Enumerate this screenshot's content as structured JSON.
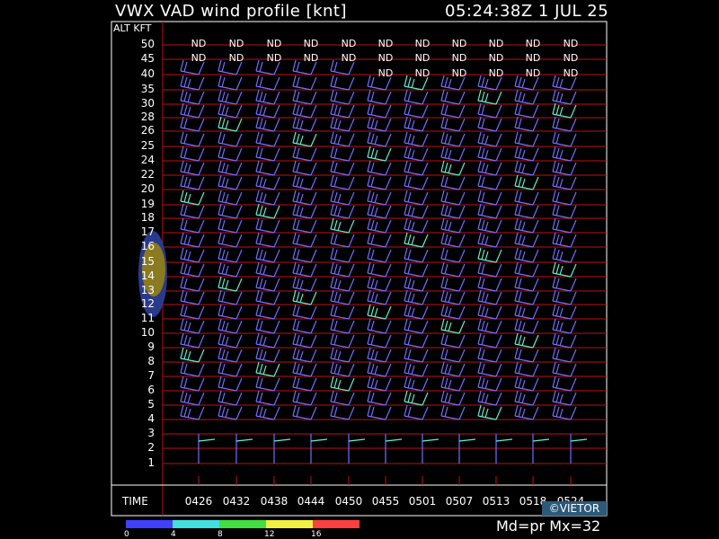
{
  "header": {
    "title": "VWX VAD wind profile [knt]",
    "timestamp": "05:24:38Z   1 JUL 25"
  },
  "axis": {
    "alt_label": "ALT KFT",
    "time_label": "TIME",
    "altitudes": [
      "50",
      "45",
      "40",
      "35",
      "30",
      "28",
      "26",
      "25",
      "24",
      "22",
      "20",
      "19",
      "18",
      "17",
      "16",
      "15",
      "14",
      "13",
      "12",
      "11",
      "10",
      "9",
      "8",
      "7",
      "6",
      "5",
      "4",
      "3",
      "2",
      "1"
    ],
    "times": [
      "0426",
      "0432",
      "0438",
      "0444",
      "0450",
      "0455",
      "0501",
      "0507",
      "0513",
      "0518",
      "0524"
    ]
  },
  "nd_label": "ND",
  "nd_rows": {
    "50": [
      0,
      1,
      2,
      3,
      4,
      5,
      6,
      7,
      8,
      9,
      10
    ],
    "45": [
      0,
      1,
      2,
      3,
      4,
      5,
      6,
      7,
      8,
      9,
      10
    ],
    "40": [
      5,
      6,
      7,
      8,
      9,
      10
    ]
  },
  "legend": {
    "ticks": [
      "0",
      "4",
      "8",
      "12",
      "16"
    ],
    "colors": [
      "#4040ff",
      "#40e0e0",
      "#40e040",
      "#f0f040",
      "#ff4040"
    ]
  },
  "copyright": "©VIETOR",
  "footer": "Md=pr  Mx=32"
}
